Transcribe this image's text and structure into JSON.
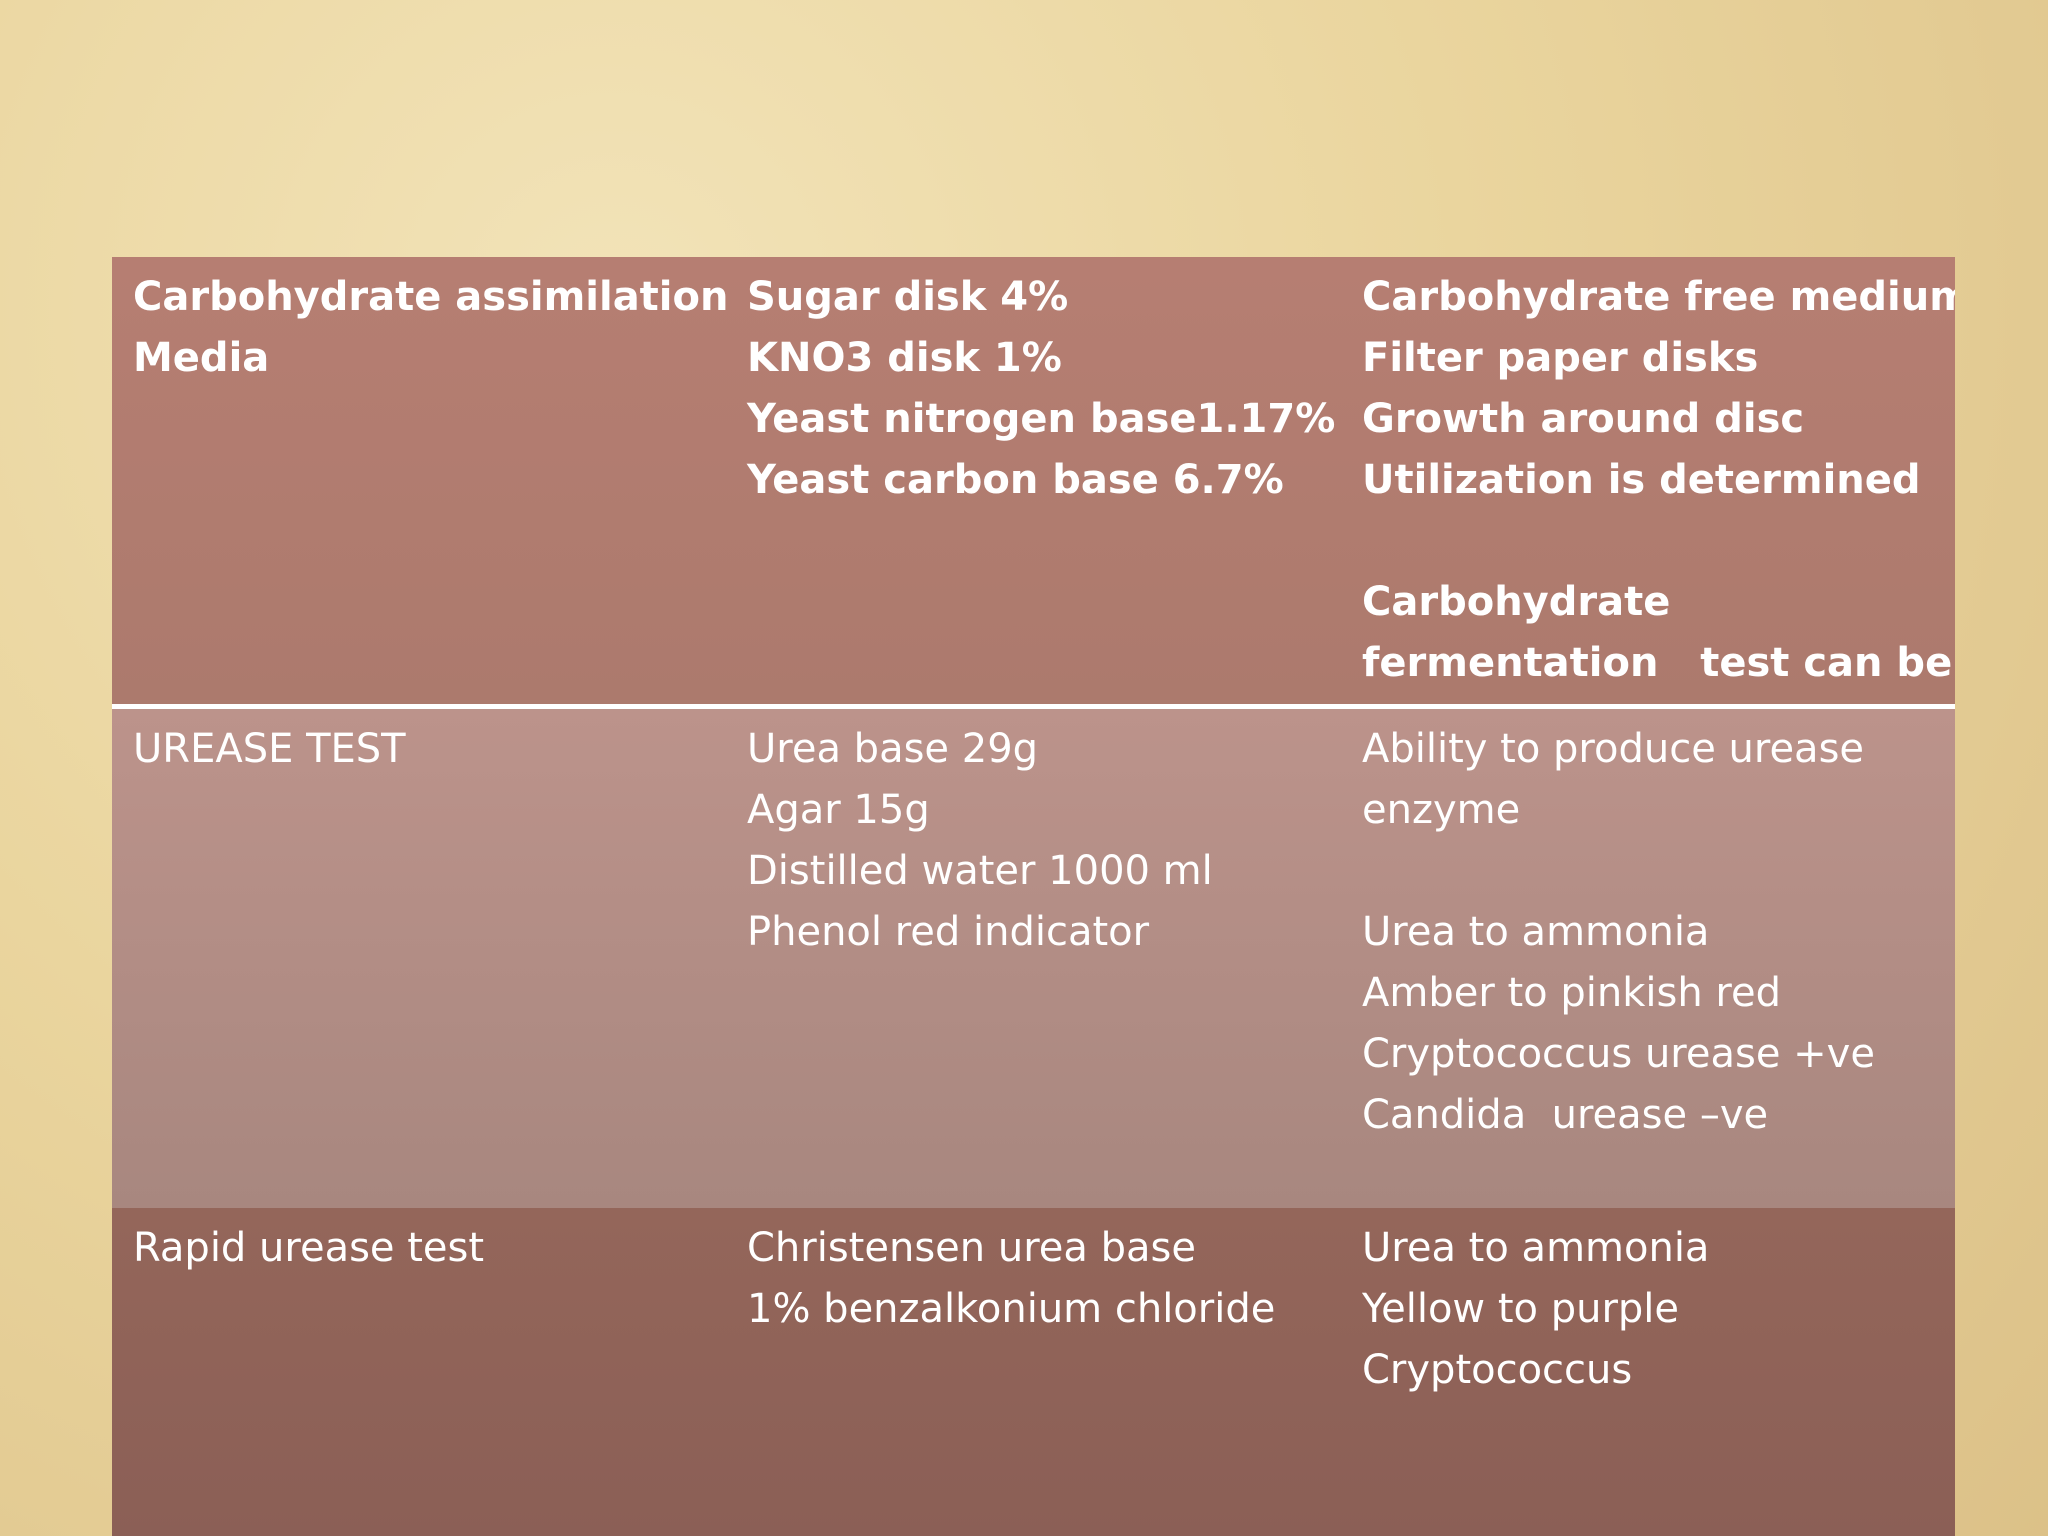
{
  "table": {
    "rows": [
      {
        "cells": [
          [
            [
              "Carbohydrate assimilation",
              "Media"
            ]
          ],
          [
            [
              "Sugar disk 4%",
              "KNO3 disk 1%",
              "Yeast nitrogen base1.17%",
              "Yeast carbon base 6.7%"
            ]
          ],
          [
            [
              "Carbohydrate free medium",
              "Filter paper disks",
              "Growth around disc",
              "Utilization is determined"
            ],
            [
              "Carbohydrate",
              "fermentation   test can be"
            ]
          ]
        ]
      },
      {
        "cells": [
          [
            [
              "UREASE TEST"
            ]
          ],
          [
            [
              "Urea base 29g",
              "Agar 15g",
              "Distilled water 1000 ml",
              "Phenol red indicator"
            ]
          ],
          [
            [
              "Ability to produce urease",
              "enzyme"
            ],
            [
              "Urea to ammonia",
              "Amber to pinkish red",
              "Cryptococcus urease +ve",
              "Candida  urease –ve"
            ]
          ]
        ]
      },
      {
        "cells": [
          [
            [
              "Rapid urease test"
            ]
          ],
          [
            [
              "Christensen urea base",
              "1% benzalkonium chloride"
            ]
          ],
          [
            [
              "Urea to ammonia",
              "Yellow to purple",
              "Cryptococcus"
            ]
          ]
        ]
      }
    ]
  }
}
